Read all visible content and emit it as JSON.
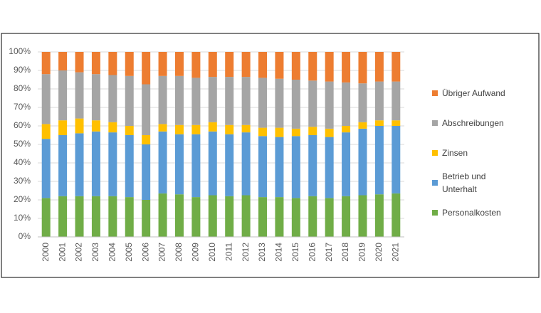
{
  "chart_data": {
    "type": "stacked_bar",
    "categories": [
      "2000",
      "2001",
      "2002",
      "2003",
      "2004",
      "2005",
      "2006",
      "2007",
      "2008",
      "2009",
      "2010",
      "2011",
      "2012",
      "2013",
      "2014",
      "2015",
      "2016",
      "2017",
      "2018",
      "2019",
      "2020",
      "2021"
    ],
    "series": [
      {
        "name": "Personalkosten",
        "color": "#70AD47",
        "values": [
          21,
          22,
          22,
          22,
          22,
          21.5,
          20,
          23.5,
          23,
          21.5,
          22.5,
          22,
          22.5,
          21.5,
          21.5,
          21,
          22,
          21,
          22,
          22.5,
          23,
          23.5
        ]
      },
      {
        "name": "Betrieb und Unterhalt",
        "color": "#5B9BD5",
        "values": [
          32,
          33,
          34,
          35,
          34.5,
          33.5,
          30,
          33.5,
          32.5,
          34,
          34.5,
          33.5,
          34,
          33,
          32.5,
          33.5,
          33,
          33,
          34.5,
          36,
          37,
          36.5
        ]
      },
      {
        "name": "Zinsen",
        "color": "#FFC000",
        "values": [
          8,
          8,
          8,
          6,
          5.5,
          5,
          5,
          4,
          5,
          5,
          5,
          5,
          4,
          4.5,
          5,
          4,
          4.5,
          4.5,
          3.5,
          3.5,
          3,
          3
        ]
      },
      {
        "name": "Abschreibungen",
        "color": "#A5A5A5",
        "values": [
          27,
          27,
          25,
          25,
          25.5,
          27,
          27.5,
          26,
          26.5,
          25.5,
          24.5,
          26,
          26,
          27,
          26.5,
          26.5,
          25,
          25.5,
          23.5,
          21,
          21,
          21
        ]
      },
      {
        "name": "Übriger Aufwand",
        "color": "#ED7D31",
        "values": [
          12,
          10,
          11,
          12,
          12.5,
          13,
          17.5,
          13,
          13,
          14,
          13.5,
          13.5,
          13.5,
          14,
          14.5,
          15,
          15.5,
          16,
          16.5,
          17,
          16,
          16
        ]
      }
    ],
    "ylim": [
      0,
      100
    ],
    "yticks": [
      {
        "value": 0,
        "label": "0%"
      },
      {
        "value": 10,
        "label": "10%"
      },
      {
        "value": 20,
        "label": "20%"
      },
      {
        "value": 30,
        "label": "30%"
      },
      {
        "value": 40,
        "label": "40%"
      },
      {
        "value": 50,
        "label": "50%"
      },
      {
        "value": 60,
        "label": "60%"
      },
      {
        "value": 70,
        "label": "70%"
      },
      {
        "value": 80,
        "label": "80%"
      },
      {
        "value": 90,
        "label": "90%"
      },
      {
        "value": 100,
        "label": "100%"
      }
    ],
    "grid": true
  }
}
